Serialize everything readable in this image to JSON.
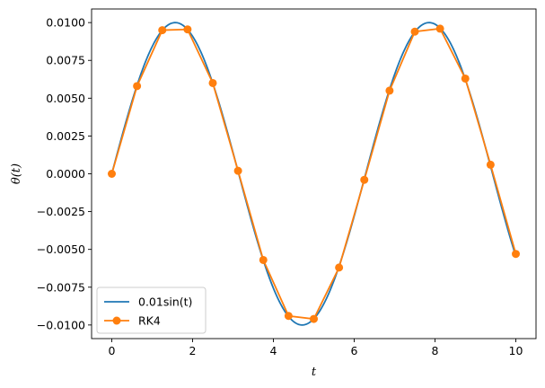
{
  "chart_data": {
    "type": "line",
    "xlabel": "t",
    "ylabel": "θ(t)",
    "xlim": [
      -0.5,
      10.5
    ],
    "ylim": [
      -0.0109,
      0.0109
    ],
    "x_ticks": [
      0,
      2,
      4,
      6,
      8,
      10
    ],
    "x_tick_labels": [
      "0",
      "2",
      "4",
      "6",
      "8",
      "10"
    ],
    "y_ticks": [
      -0.01,
      -0.0075,
      -0.005,
      -0.0025,
      0.0,
      0.0025,
      0.005,
      0.0075,
      0.01
    ],
    "y_tick_labels": [
      "−0.0100",
      "−0.0075",
      "−0.0050",
      "−0.0025",
      "0.0000",
      "0.0025",
      "0.0050",
      "0.0075",
      "0.0100"
    ],
    "grid": false,
    "legend_position": "lower-left",
    "series": [
      {
        "name": "0.01sin(t)",
        "kind": "smooth-line",
        "function": "0.01*sin(t)",
        "x_range": [
          0,
          10
        ],
        "color": "#1f77b4"
      },
      {
        "name": "RK4",
        "kind": "line-with-markers",
        "color": "#ff7f0e",
        "x": [
          0,
          0.625,
          1.25,
          1.875,
          2.5,
          3.125,
          3.75,
          4.375,
          5.0,
          5.625,
          6.25,
          6.875,
          7.5,
          8.125,
          8.75,
          9.375,
          10.0
        ],
        "y": [
          0.0,
          0.0058,
          0.0095,
          0.00955,
          0.006,
          0.0002,
          -0.0057,
          -0.0094,
          -0.0096,
          -0.0062,
          -0.0004,
          0.0055,
          0.0094,
          0.0096,
          0.0063,
          0.0006,
          -0.0053
        ]
      }
    ]
  }
}
